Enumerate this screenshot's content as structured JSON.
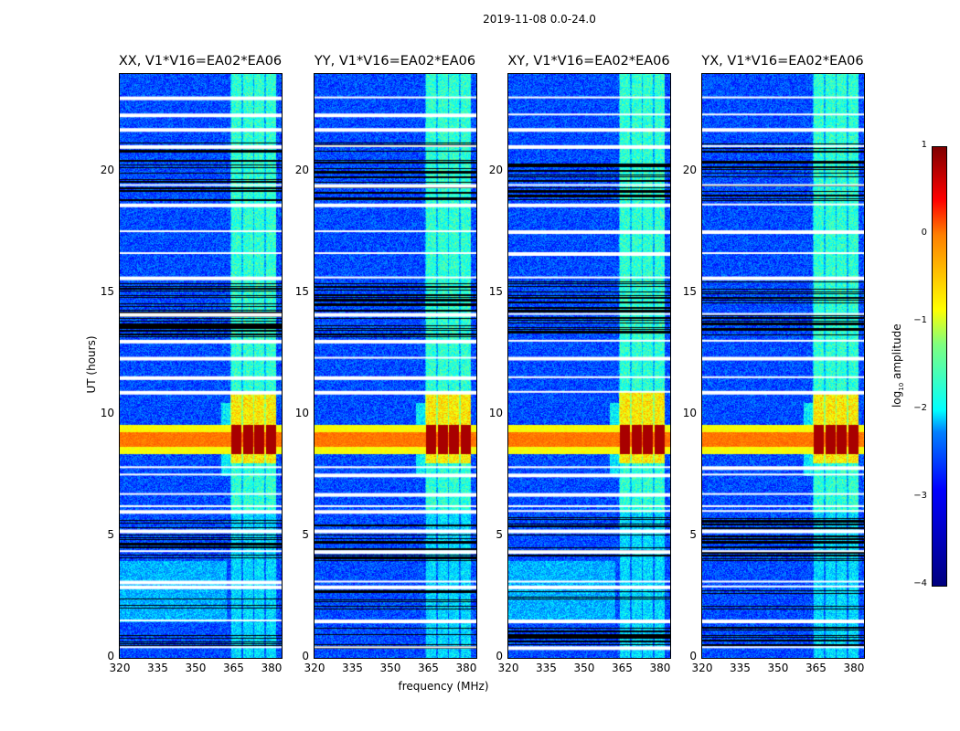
{
  "chart_data": {
    "type": "heatmap",
    "title": "2019-11-08 0.0-24.0",
    "xlabel": "frequency (MHz)",
    "ylabel": "UT (hours)",
    "xlim": [
      320,
      384
    ],
    "ylim": [
      0,
      24
    ],
    "xticks": [
      "320",
      "335",
      "350",
      "365",
      "380"
    ],
    "yticks": [
      "0",
      "5",
      "10",
      "15",
      "20"
    ],
    "panels": [
      {
        "title": "XX, V1*V16=EA02*EA06"
      },
      {
        "title": "YY, V1*V16=EA02*EA06"
      },
      {
        "title": "XY, V1*V16=EA02*EA06"
      },
      {
        "title": "YX, V1*V16=EA02*EA06"
      }
    ],
    "colorbar": {
      "label_prefix": "log",
      "label_sub": "10",
      "label_suffix": " amplitude",
      "range": [
        -4,
        1
      ],
      "ticks": [
        "1",
        "0",
        "−1",
        "−2",
        "−3",
        "−4"
      ],
      "colormap": "jet"
    },
    "background_level": -3,
    "rfi_band_MHz": [
      362,
      382
    ],
    "strong_band_UT": [
      8.5,
      9.5
    ],
    "flagged_rows_UT": [
      0.4,
      1.5,
      2.9,
      3.1,
      4.35,
      5.2,
      6.0,
      6.2,
      6.7,
      7.5,
      7.8,
      10.9,
      11.5,
      12.3,
      13.0,
      14.1,
      15.6,
      16.6,
      17.5,
      18.6,
      19.4,
      21.0,
      21.7,
      22.3,
      23.0
    ],
    "dark_rows_UT": [
      [
        0.4,
        1.3
      ],
      [
        2.0,
        2.8
      ],
      [
        4.0,
        5.8
      ],
      [
        13.2,
        15.5
      ],
      [
        18.8,
        20.5
      ],
      [
        20.8,
        21.2
      ]
    ]
  }
}
